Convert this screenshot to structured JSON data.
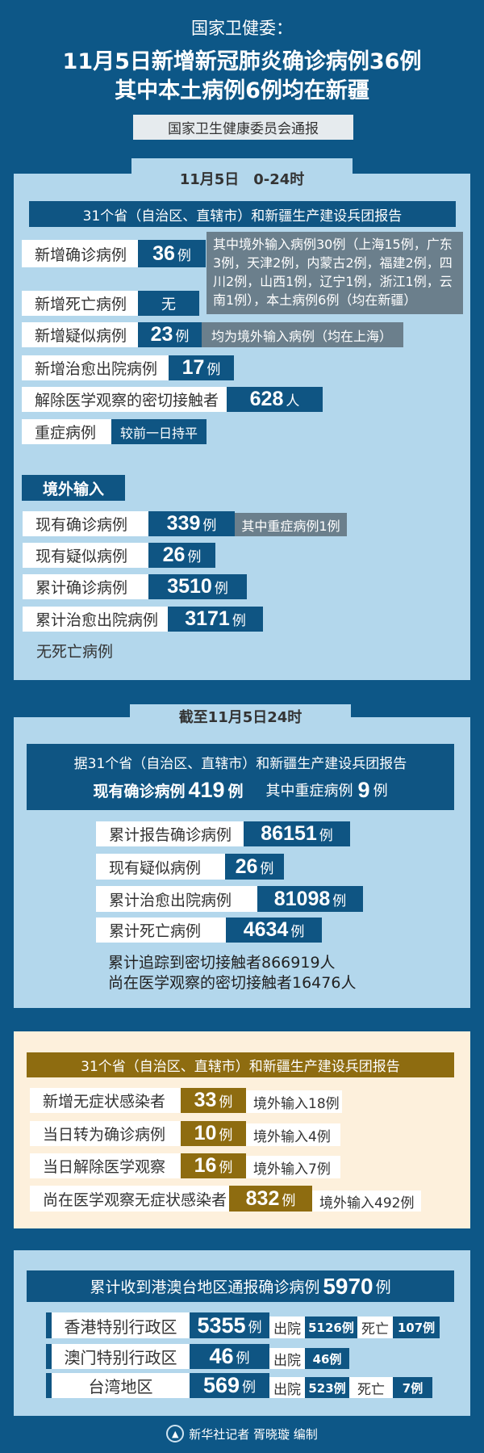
{
  "header": {
    "org": "国家卫健委：",
    "headline1": "11月5日新增新冠肺炎确诊病例36例",
    "headline2": "其中本土病例6例均在新疆",
    "source": "国家卫生健康委员会通报"
  },
  "daily": {
    "tab": "11月5日　0-24时",
    "banner": "31个省（自治区、直辖市）和新疆生产建设兵团报告",
    "rows": [
      {
        "label": "新增确诊病例",
        "value": "36",
        "unit": "例",
        "note": "其中境外输入病例30例（上海15例，广东3例，天津2例，内蒙古2例，福建2例，四川2例，山西1例，辽宁1例，浙江1例，云南1例），本土病例6例（均在新疆）"
      },
      {
        "label": "新增死亡病例",
        "value": "无"
      },
      {
        "label": "新增疑似病例",
        "value": "23",
        "unit": "例",
        "note": "均为境外输入病例（均在上海）"
      },
      {
        "label": "新增治愈出院病例",
        "value": "17",
        "unit": "例"
      },
      {
        "label": "解除医学观察的密切接触者",
        "value": "628",
        "unit": "人"
      },
      {
        "label": "重症病例",
        "value": "较前一日持平"
      }
    ],
    "imported": {
      "title": "境外输入",
      "rows": [
        {
          "label": "现有确诊病例",
          "value": "339",
          "unit": "例",
          "note": "其中重症病例1例"
        },
        {
          "label": "现有疑似病例",
          "value": "26",
          "unit": "例"
        },
        {
          "label": "累计确诊病例",
          "value": "3510",
          "unit": "例"
        },
        {
          "label": "累计治愈出院病例",
          "value": "3171",
          "unit": "例"
        }
      ],
      "footer": "无死亡病例"
    }
  },
  "cumulative": {
    "tab": "截至11月5日24时",
    "banner": "据31个省（自治区、直辖市）和新疆生产建设兵团报告",
    "current_label": "现有确诊病例",
    "current_value": "419",
    "current_unit": "例",
    "severe_label": "其中重症病例",
    "severe_value": "9",
    "severe_unit": "例",
    "rows": [
      {
        "label": "累计报告确诊病例",
        "value": "86151",
        "unit": "例"
      },
      {
        "label": "现有疑似病例",
        "value": "26",
        "unit": "例"
      },
      {
        "label": "累计治愈出院病例",
        "value": "81098",
        "unit": "例"
      },
      {
        "label": "累计死亡病例",
        "value": "4634",
        "unit": "例"
      }
    ],
    "contacts_total": "累计追踪到密切接触者866919人",
    "contacts_observed": "尚在医学观察的密切接触者16476人"
  },
  "asymptomatic": {
    "banner": "31个省（自治区、直辖市）和新疆生产建设兵团报告",
    "rows": [
      {
        "label": "新增无症状感染者",
        "value": "33",
        "unit": "例",
        "note": "境外输入18例"
      },
      {
        "label": "当日转为确诊病例",
        "value": "10",
        "unit": "例",
        "note": "境外输入4例"
      },
      {
        "label": "当日解除医学观察",
        "value": "16",
        "unit": "例",
        "note": "境外输入7例"
      },
      {
        "label": "尚在医学观察无症状感染者",
        "value": "832",
        "unit": "例",
        "note": "境外输入492例"
      }
    ]
  },
  "hmt": {
    "banner": "累计收到港澳台地区通报确诊病例",
    "total": "5970",
    "unit": "例",
    "discharged_label": "出院",
    "death_label": "死亡",
    "rows": [
      {
        "label": "香港特别行政区",
        "value": "5355",
        "discharged": "5126例",
        "deaths": "107例"
      },
      {
        "label": "澳门特别行政区",
        "value": "46",
        "discharged": "46例"
      },
      {
        "label": "台湾地区",
        "value": "569",
        "discharged": "523例",
        "deaths": "7例"
      }
    ]
  },
  "footer": {
    "credit": "新华社记者 胥晓璇 编制",
    "logo": "xinhua-logo"
  },
  "colors": {
    "background": "#0d5787",
    "panel": "#b3d7ec",
    "value_blue": "#0f5583",
    "note_gray": "#6b7f8c",
    "gold": "#8e6c10",
    "beige": "#fdf0dc"
  }
}
